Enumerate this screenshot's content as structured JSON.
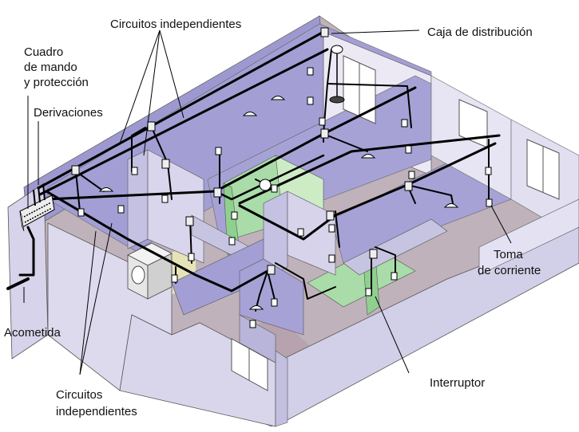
{
  "labels": {
    "circuitos_top": "Circuitos independientes",
    "caja": "Caja de distribución",
    "cuadro_1": "Cuadro",
    "cuadro_2": "de mando",
    "cuadro_3": "y protección",
    "derivaciones": "Derivaciones",
    "acometida": "Acometida",
    "circuitos_bottom_1": "Circuitos",
    "circuitos_bottom_2": "independientes",
    "interruptor": "Interruptor",
    "toma_1": "Toma",
    "toma_2": "de corriente"
  },
  "colors": {
    "wall_light": "#d9d6ea",
    "wall_face": "#c9c6e3",
    "wall_interior": "#9c98cf",
    "wall_dark": "#8d89c6",
    "floor": "#b8a9b3",
    "floor_light": "#dccfd6",
    "bathroom": "#a8dca8",
    "bathroom_light": "#c9ebc3",
    "wire": "#000000",
    "window": "#ffffff"
  }
}
